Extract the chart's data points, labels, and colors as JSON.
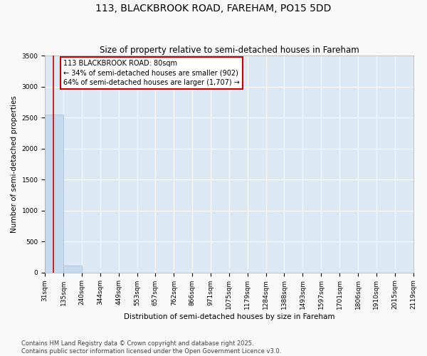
{
  "title": "113, BLACKBROOK ROAD, FAREHAM, PO15 5DD",
  "subtitle": "Size of property relative to semi-detached houses in Fareham",
  "xlabel": "Distribution of semi-detached houses by size in Fareham",
  "ylabel": "Number of semi-detached properties",
  "bin_edges": [
    31,
    135,
    240,
    344,
    449,
    553,
    657,
    762,
    866,
    971,
    1075,
    1179,
    1284,
    1388,
    1493,
    1597,
    1701,
    1806,
    1910,
    2015,
    2119
  ],
  "bar_heights": [
    2550,
    110,
    0,
    0,
    0,
    0,
    0,
    0,
    0,
    0,
    0,
    0,
    0,
    0,
    0,
    0,
    0,
    0,
    0,
    0
  ],
  "bar_color": "#c5d9ef",
  "bar_edgecolor": "#a0b8d8",
  "property_size": 80,
  "property_line_color": "#cc0000",
  "annotation_title": "113 BLACKBROOK ROAD: 80sqm",
  "annotation_line1": "← 34% of semi-detached houses are smaller (902)",
  "annotation_line2": "64% of semi-detached houses are larger (1,707) →",
  "annotation_box_edgecolor": "#cc0000",
  "annotation_text_color": "#000000",
  "ylim": [
    0,
    3500
  ],
  "yticks": [
    0,
    500,
    1000,
    1500,
    2000,
    2500,
    3000,
    3500
  ],
  "footer_line1": "Contains HM Land Registry data © Crown copyright and database right 2025.",
  "footer_line2": "Contains public sector information licensed under the Open Government Licence v3.0.",
  "fig_bg_color": "#f8f8f8",
  "plot_bg_color": "#dce9f5",
  "title_fontsize": 10,
  "subtitle_fontsize": 8.5,
  "axis_label_fontsize": 7.5,
  "tick_fontsize": 6.5,
  "annotation_fontsize": 7,
  "footer_fontsize": 6
}
